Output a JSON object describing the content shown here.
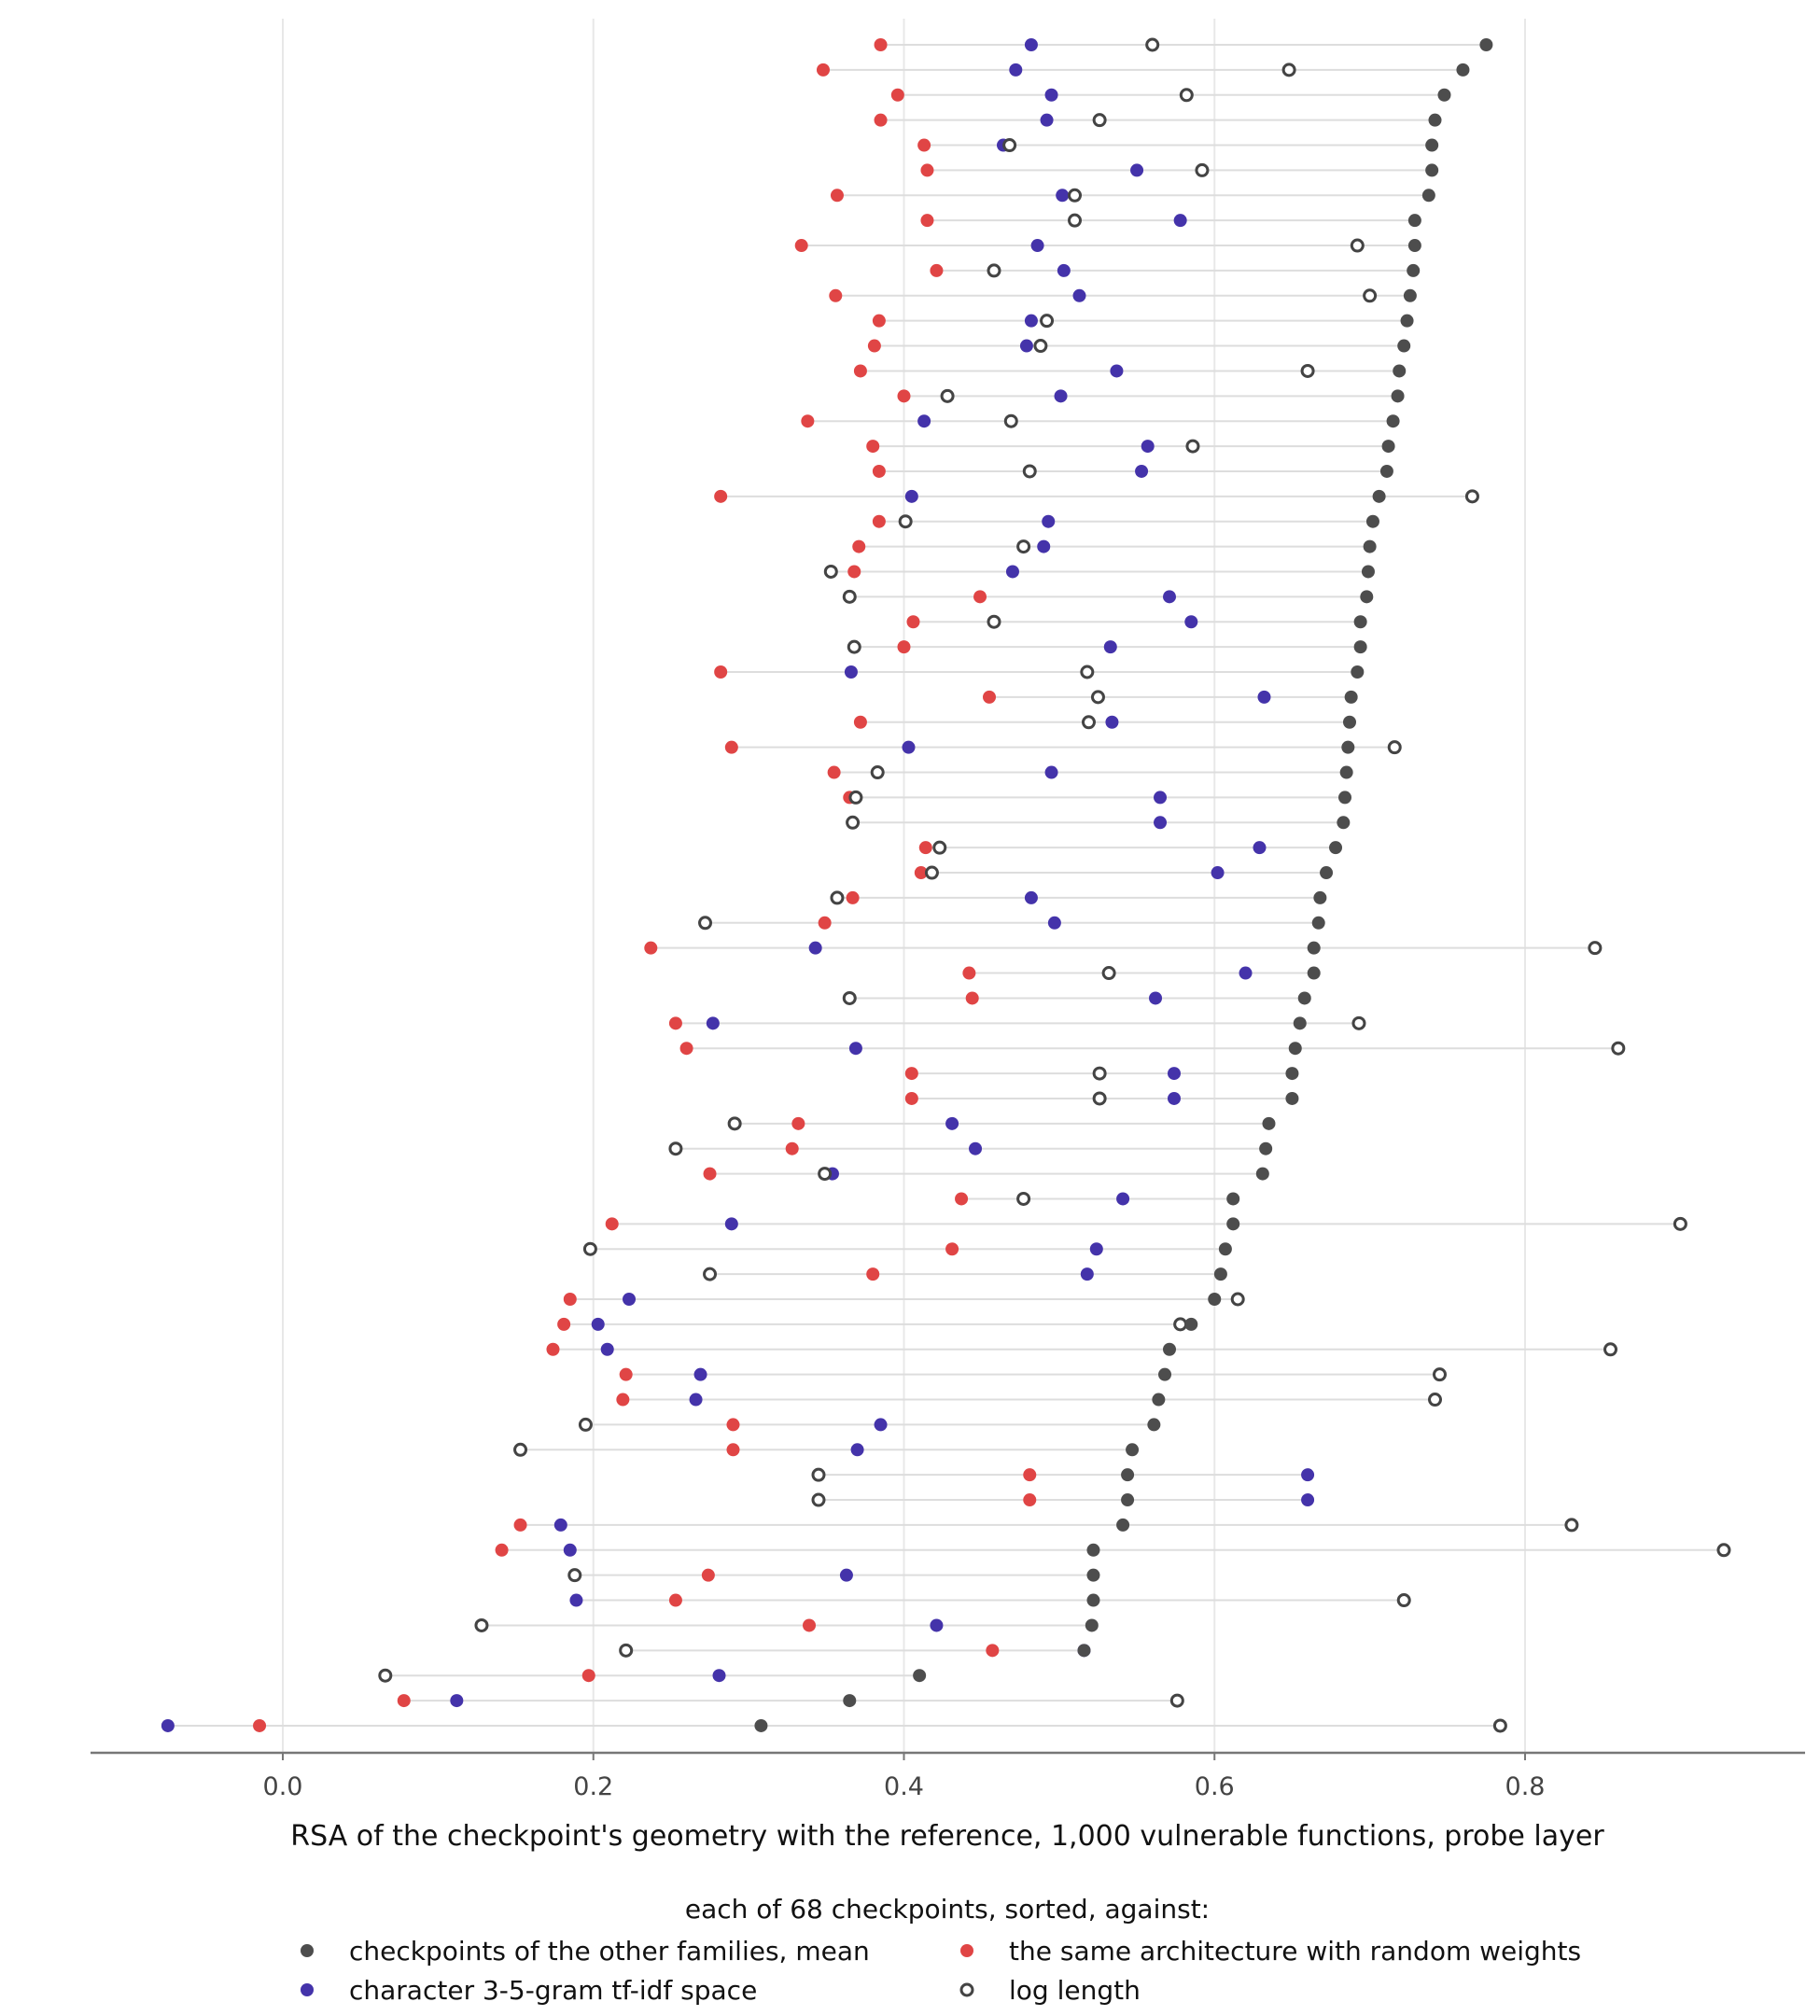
{
  "chart_data": {
    "type": "scatter",
    "subtype": "dot-plot",
    "xlabel": "RSA of the checkpoint's geometry with the reference, 1,000 vulnerable functions, probe layer",
    "ylabel": "",
    "xlim": [
      -0.125,
      0.975
    ],
    "xticks": [
      0.0,
      0.2,
      0.4,
      0.6,
      0.8
    ],
    "xtick_labels": [
      "0.0",
      "0.2",
      "0.4",
      "0.6",
      "0.8"
    ],
    "grid": "vertical",
    "legend": {
      "title": "each of 68 checkpoints, sorted, against:",
      "position": "bottom",
      "entries": [
        {
          "key": "mean",
          "label": "checkpoints of the other families, mean"
        },
        {
          "key": "tfidf",
          "label": "character 3-5-gram tf-idf space"
        },
        {
          "key": "random",
          "label": "the same architecture with random weights"
        },
        {
          "key": "loglen",
          "label": "log length"
        }
      ]
    },
    "colors": {
      "mean": "#4d4d4d",
      "tfidf": "#4433aa",
      "random": "#e04545",
      "loglen_stroke": "#444444",
      "row_line": "#dddddd",
      "grid": "#e8e8e8",
      "axis": "#777777"
    },
    "rows": [
      {
        "mean": 0.775,
        "tfidf": 0.482,
        "random": 0.385,
        "loglen": 0.56
      },
      {
        "mean": 0.76,
        "tfidf": 0.472,
        "random": 0.348,
        "loglen": 0.648
      },
      {
        "mean": 0.748,
        "tfidf": 0.495,
        "random": 0.396,
        "loglen": 0.582
      },
      {
        "mean": 0.742,
        "tfidf": 0.492,
        "random": 0.385,
        "loglen": 0.526
      },
      {
        "mean": 0.74,
        "tfidf": 0.464,
        "random": 0.413,
        "loglen": 0.468
      },
      {
        "mean": 0.74,
        "tfidf": 0.55,
        "random": 0.415,
        "loglen": 0.592
      },
      {
        "mean": 0.738,
        "tfidf": 0.502,
        "random": 0.357,
        "loglen": 0.51
      },
      {
        "mean": 0.729,
        "tfidf": 0.578,
        "random": 0.415,
        "loglen": 0.51
      },
      {
        "mean": 0.729,
        "tfidf": 0.486,
        "random": 0.334,
        "loglen": 0.692
      },
      {
        "mean": 0.728,
        "tfidf": 0.503,
        "random": 0.421,
        "loglen": 0.458
      },
      {
        "mean": 0.726,
        "tfidf": 0.513,
        "random": 0.356,
        "loglen": 0.7
      },
      {
        "mean": 0.724,
        "tfidf": 0.482,
        "random": 0.384,
        "loglen": 0.492
      },
      {
        "mean": 0.722,
        "tfidf": 0.479,
        "random": 0.381,
        "loglen": 0.488
      },
      {
        "mean": 0.719,
        "tfidf": 0.537,
        "random": 0.372,
        "loglen": 0.66
      },
      {
        "mean": 0.718,
        "tfidf": 0.501,
        "random": 0.4,
        "loglen": 0.428
      },
      {
        "mean": 0.715,
        "tfidf": 0.413,
        "random": 0.338,
        "loglen": 0.469
      },
      {
        "mean": 0.712,
        "tfidf": 0.557,
        "random": 0.38,
        "loglen": 0.586
      },
      {
        "mean": 0.711,
        "tfidf": 0.553,
        "random": 0.384,
        "loglen": 0.481
      },
      {
        "mean": 0.706,
        "tfidf": 0.405,
        "random": 0.282,
        "loglen": 0.766
      },
      {
        "mean": 0.702,
        "tfidf": 0.493,
        "random": 0.384,
        "loglen": 0.401
      },
      {
        "mean": 0.7,
        "tfidf": 0.49,
        "random": 0.371,
        "loglen": 0.477
      },
      {
        "mean": 0.699,
        "tfidf": 0.47,
        "random": 0.368,
        "loglen": 0.353
      },
      {
        "mean": 0.698,
        "tfidf": 0.571,
        "random": 0.449,
        "loglen": 0.365
      },
      {
        "mean": 0.694,
        "tfidf": 0.585,
        "random": 0.406,
        "loglen": 0.458
      },
      {
        "mean": 0.694,
        "tfidf": 0.533,
        "random": 0.4,
        "loglen": 0.368
      },
      {
        "mean": 0.692,
        "tfidf": 0.366,
        "random": 0.282,
        "loglen": 0.518
      },
      {
        "mean": 0.688,
        "tfidf": 0.632,
        "random": 0.455,
        "loglen": 0.525
      },
      {
        "mean": 0.687,
        "tfidf": 0.534,
        "random": 0.372,
        "loglen": 0.519
      },
      {
        "mean": 0.686,
        "tfidf": 0.403,
        "random": 0.289,
        "loglen": 0.716
      },
      {
        "mean": 0.685,
        "tfidf": 0.495,
        "random": 0.355,
        "loglen": 0.383
      },
      {
        "mean": 0.684,
        "tfidf": 0.565,
        "random": 0.365,
        "loglen": 0.369
      },
      {
        "mean": 0.683,
        "tfidf": 0.565,
        "random": null,
        "loglen": 0.367
      },
      {
        "mean": 0.678,
        "tfidf": 0.629,
        "random": 0.414,
        "loglen": 0.423
      },
      {
        "mean": 0.672,
        "tfidf": 0.602,
        "random": 0.411,
        "loglen": 0.418
      },
      {
        "mean": 0.668,
        "tfidf": 0.482,
        "random": 0.367,
        "loglen": 0.357
      },
      {
        "mean": 0.667,
        "tfidf": 0.497,
        "random": 0.349,
        "loglen": 0.272
      },
      {
        "mean": 0.664,
        "tfidf": 0.343,
        "random": 0.237,
        "loglen": 0.845
      },
      {
        "mean": 0.664,
        "tfidf": 0.62,
        "random": 0.442,
        "loglen": 0.532
      },
      {
        "mean": 0.658,
        "tfidf": 0.562,
        "random": 0.444,
        "loglen": 0.365
      },
      {
        "mean": 0.655,
        "tfidf": 0.277,
        "random": 0.253,
        "loglen": 0.693
      },
      {
        "mean": 0.652,
        "tfidf": 0.369,
        "random": 0.26,
        "loglen": 0.86
      },
      {
        "mean": 0.65,
        "tfidf": 0.574,
        "random": 0.405,
        "loglen": 0.526
      },
      {
        "mean": 0.65,
        "tfidf": 0.574,
        "random": 0.405,
        "loglen": 0.526
      },
      {
        "mean": 0.635,
        "tfidf": 0.431,
        "random": 0.332,
        "loglen": 0.291
      },
      {
        "mean": 0.633,
        "tfidf": 0.446,
        "random": 0.328,
        "loglen": 0.253
      },
      {
        "mean": 0.631,
        "tfidf": 0.354,
        "random": 0.275,
        "loglen": 0.349
      },
      {
        "mean": 0.612,
        "tfidf": 0.541,
        "random": 0.437,
        "loglen": 0.477
      },
      {
        "mean": 0.612,
        "tfidf": 0.289,
        "random": 0.212,
        "loglen": 0.9
      },
      {
        "mean": 0.607,
        "tfidf": 0.524,
        "random": 0.431,
        "loglen": 0.198
      },
      {
        "mean": 0.604,
        "tfidf": 0.518,
        "random": 0.38,
        "loglen": 0.275
      },
      {
        "mean": 0.6,
        "tfidf": 0.223,
        "random": 0.185,
        "loglen": 0.615
      },
      {
        "mean": 0.585,
        "tfidf": 0.203,
        "random": 0.181,
        "loglen": 0.578
      },
      {
        "mean": 0.571,
        "tfidf": 0.209,
        "random": 0.174,
        "loglen": 0.855
      },
      {
        "mean": 0.568,
        "tfidf": 0.269,
        "random": 0.221,
        "loglen": 0.745
      },
      {
        "mean": 0.564,
        "tfidf": 0.266,
        "random": 0.219,
        "loglen": 0.742
      },
      {
        "mean": 0.561,
        "tfidf": 0.385,
        "random": 0.29,
        "loglen": 0.195
      },
      {
        "mean": 0.547,
        "tfidf": 0.37,
        "random": 0.29,
        "loglen": 0.153
      },
      {
        "mean": 0.544,
        "tfidf": 0.66,
        "random": 0.481,
        "loglen": 0.345
      },
      {
        "mean": 0.544,
        "tfidf": 0.66,
        "random": 0.481,
        "loglen": 0.345
      },
      {
        "mean": 0.541,
        "tfidf": 0.179,
        "random": 0.153,
        "loglen": 0.83
      },
      {
        "mean": 0.522,
        "tfidf": 0.185,
        "random": 0.141,
        "loglen": 0.928
      },
      {
        "mean": 0.522,
        "tfidf": 0.363,
        "random": 0.274,
        "loglen": 0.188
      },
      {
        "mean": 0.522,
        "tfidf": 0.189,
        "random": 0.253,
        "loglen": 0.722
      },
      {
        "mean": 0.521,
        "tfidf": 0.421,
        "random": 0.339,
        "loglen": 0.128
      },
      {
        "mean": 0.516,
        "tfidf": 0.516,
        "random": 0.457,
        "loglen": 0.221
      },
      {
        "mean": 0.41,
        "tfidf": 0.281,
        "random": 0.197,
        "loglen": 0.066
      },
      {
        "mean": 0.365,
        "tfidf": 0.112,
        "random": 0.078,
        "loglen": 0.576
      },
      {
        "mean": 0.308,
        "tfidf": -0.074,
        "random": -0.015,
        "loglen": 0.784
      }
    ]
  }
}
